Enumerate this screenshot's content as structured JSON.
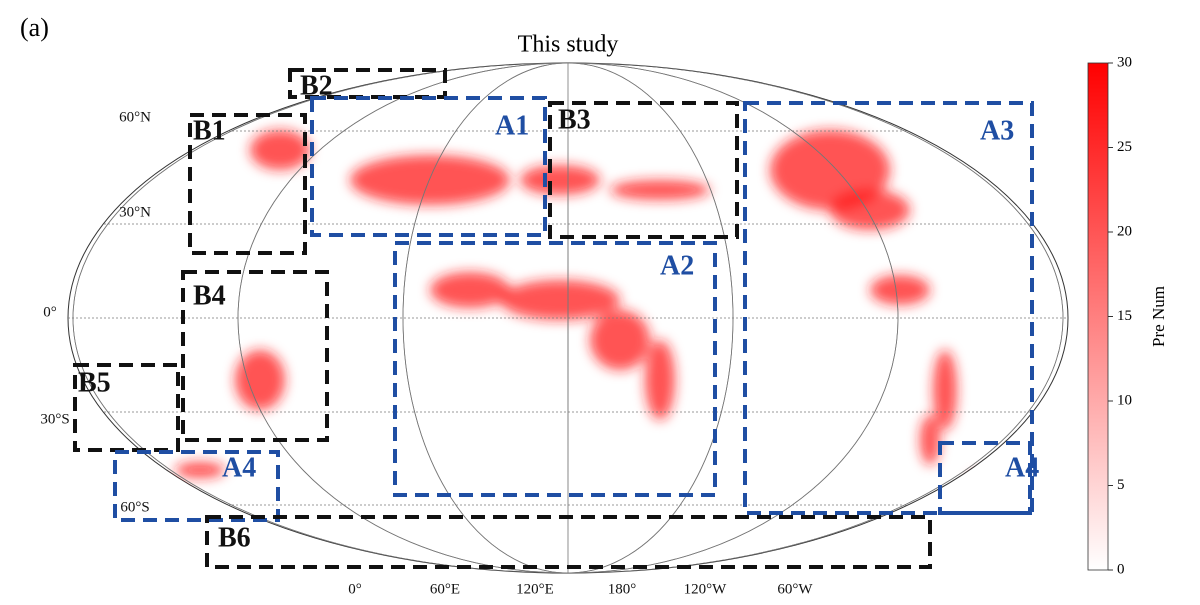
{
  "panel_label": "(a)",
  "title": "This study",
  "lat_labels": [
    "60°N",
    "30°N",
    "0°",
    "30°S",
    "60°S"
  ],
  "lon_labels": [
    "0°",
    "60°E",
    "120°E",
    "180°",
    "120°W",
    "60°W"
  ],
  "regions": [
    {
      "label": "B2",
      "color": "#111111"
    },
    {
      "label": "A1",
      "color": "#1f4ea3"
    },
    {
      "label": "B1",
      "color": "#111111"
    },
    {
      "label": "B3",
      "color": "#111111"
    },
    {
      "label": "A3",
      "color": "#1f4ea3"
    },
    {
      "label": "A2",
      "color": "#1f4ea3"
    },
    {
      "label": "B4",
      "color": "#111111"
    },
    {
      "label": "B5",
      "color": "#111111"
    },
    {
      "label": "A4",
      "color": "#1f4ea3"
    },
    {
      "label": "A4",
      "color": "#1f4ea3"
    },
    {
      "label": "B6",
      "color": "#111111"
    }
  ],
  "colorbar": {
    "label": "Pre Num",
    "lim": [
      0,
      30
    ],
    "ticks": [
      0,
      5,
      10,
      15,
      20,
      25,
      30
    ],
    "color": "#ff0000"
  }
}
